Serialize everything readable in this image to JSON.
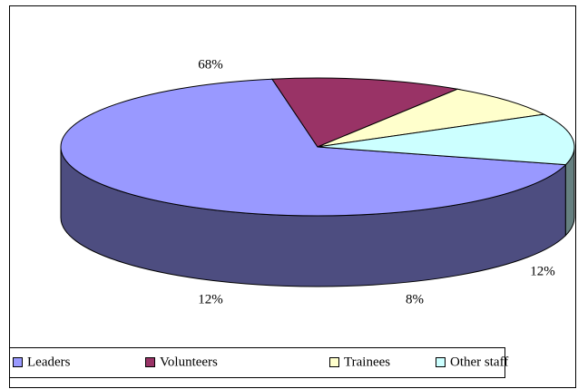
{
  "chart_data": {
    "type": "pie3d",
    "categories": [
      "Leaders",
      "Volunteers",
      "Trainees",
      "Other staff"
    ],
    "values": [
      68,
      12,
      8,
      12
    ],
    "value_labels": [
      "68%",
      "12%",
      "8%",
      "12%"
    ],
    "colors": [
      "#9999ff",
      "#993366",
      "#ffffcc",
      "#ccffff"
    ],
    "legend": "bottom"
  }
}
